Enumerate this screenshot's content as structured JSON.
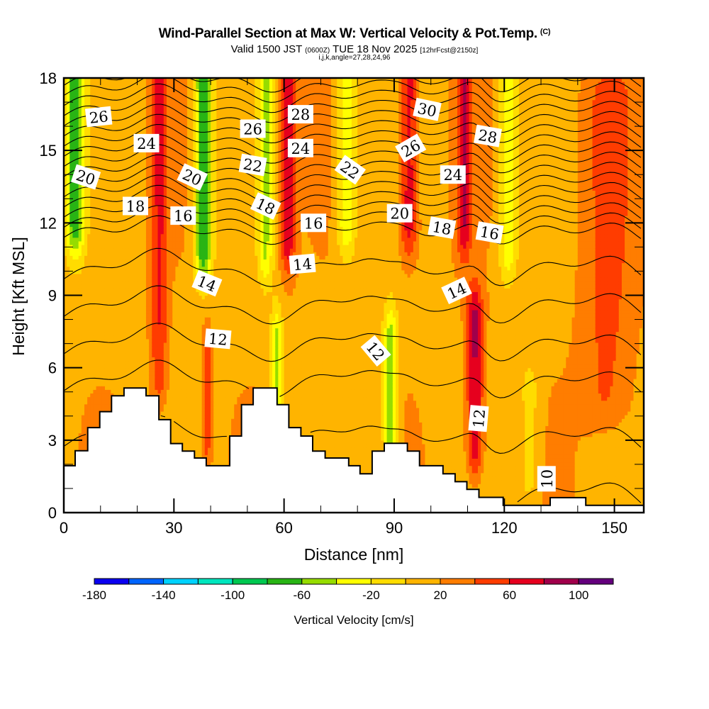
{
  "header": {
    "title": "Wind-Parallel Section at Max W: Vertical Velocity & Pot.Temp.",
    "copyright_mark": "(C)",
    "valid_prefix": "Valid 1500 JST",
    "valid_utc": "(0600Z)",
    "valid_date": "TUE 18 Nov 2025",
    "forecast_info": "[12hrFcst@2150z]",
    "grid_info": "i,j,k,angle=27,28,24,96"
  },
  "chart_data": {
    "type": "heatmap",
    "title": "Wind-Parallel Section at Max W: Vertical Velocity & Pot.Temp.",
    "xlabel": "Distance [nm]",
    "ylabel": "Height [Kft MSL]",
    "xlim": [
      0,
      158
    ],
    "ylim": [
      0,
      18
    ],
    "x_ticks": [
      0,
      30,
      60,
      90,
      120,
      150
    ],
    "x_minor_step": 10,
    "y_ticks": [
      0,
      3,
      6,
      9,
      12,
      15,
      18
    ],
    "y_minor_step": 1,
    "fill_variable": "Vertical Velocity [cm/s]",
    "contour_variable": "Potential Temperature",
    "colorbar": {
      "title": "Vertical Velocity [cm/s]",
      "placement": "bottom",
      "bounds": [
        -180,
        -160,
        -140,
        -120,
        -100,
        -80,
        -60,
        -40,
        -20,
        0,
        20,
        40,
        60,
        80,
        100,
        120
      ],
      "tick_labels": [
        "-180",
        "-140",
        "-100",
        "-60",
        "-20",
        "20",
        "60",
        "100"
      ],
      "tick_values": [
        -180,
        -140,
        -100,
        -60,
        -20,
        20,
        60,
        100
      ],
      "colors": [
        "#0a00f0",
        "#0064ff",
        "#00d2ff",
        "#00e6be",
        "#00c850",
        "#28b414",
        "#96dc00",
        "#ffff00",
        "#ffdc00",
        "#ffb400",
        "#ff7d00",
        "#ff3c00",
        "#e6001e",
        "#a0004b",
        "#64007d"
      ]
    },
    "background_w": 15,
    "w_columns": [
      {
        "x": 3,
        "x_width": 2.6,
        "h_bottom": 12,
        "h_top": 18,
        "w": -85
      },
      {
        "x": 26,
        "x_width": 2.2,
        "h_bottom": 6,
        "h_top": 18,
        "w": 45
      },
      {
        "x": 38,
        "x_width": 2.4,
        "h_bottom": 11,
        "h_top": 18,
        "w": -95
      },
      {
        "x": 55,
        "x_width": 2.0,
        "h_bottom": 11,
        "h_top": 18,
        "w": -55
      },
      {
        "x": 61,
        "x_width": 2.0,
        "h_bottom": 11.5,
        "h_top": 18,
        "w": 65
      },
      {
        "x": 58,
        "x_width": 1.6,
        "h_bottom": 5,
        "h_top": 7,
        "w": -65
      },
      {
        "x": 77,
        "x_width": 2.6,
        "h_bottom": 12,
        "h_top": 18,
        "w": -55
      },
      {
        "x": 89,
        "x_width": 2.0,
        "h_bottom": 3,
        "h_top": 7,
        "w": -70
      },
      {
        "x": 94,
        "x_width": 2.4,
        "h_bottom": 12,
        "h_top": 18,
        "w": 60
      },
      {
        "x": 109,
        "x_width": 2.0,
        "h_bottom": 12,
        "h_top": 18,
        "w": 60
      },
      {
        "x": 112,
        "x_width": 2.2,
        "h_bottom": 3,
        "h_top": 8,
        "w": 70
      },
      {
        "x": 121,
        "x_width": 2.4,
        "h_bottom": 11,
        "h_top": 18,
        "w": -50
      },
      {
        "x": 39,
        "x_width": 1.2,
        "h_bottom": 3.5,
        "h_top": 6,
        "w": 45
      },
      {
        "x": 148,
        "x_width": 7,
        "h_bottom": 5,
        "h_top": 17,
        "w": 30
      },
      {
        "x": 127,
        "x_width": 3,
        "h_bottom": 1.5,
        "h_top": 5,
        "w": -25
      }
    ],
    "terrain": {
      "x": [
        0,
        3.1,
        6.5,
        9.8,
        13.0,
        16.4,
        22.4,
        25.9,
        29.1,
        32.3,
        35.6,
        38.8,
        45.2,
        48.4,
        51.6,
        58.1,
        61.3,
        64.6,
        67.8,
        71.2,
        77.6,
        80.7,
        84.0,
        87.3,
        93.6,
        96.9,
        103.3,
        106.6,
        109.8,
        113.1,
        119.7,
        132.5,
        142.2,
        158
      ],
      "height": [
        1.94,
        2.56,
        3.52,
        4.18,
        4.84,
        5.16,
        4.84,
        3.85,
        2.86,
        2.55,
        2.26,
        1.94,
        3.17,
        4.47,
        5.16,
        4.47,
        3.52,
        3.17,
        2.55,
        2.26,
        1.94,
        1.61,
        2.55,
        2.87,
        2.55,
        1.94,
        1.61,
        1.28,
        0.96,
        0.63,
        0.3,
        0.62,
        0.3,
        0.3
      ]
    },
    "contour_levels": [
      10,
      11,
      12,
      13,
      14,
      15,
      16,
      17,
      18,
      19,
      20,
      21,
      22,
      23,
      24,
      25,
      26,
      27,
      28,
      29,
      30,
      31
    ],
    "contour_labels": [
      {
        "text": "26",
        "x": 9.5,
        "y": 16.4,
        "angle": -6
      },
      {
        "text": "24",
        "x": 22.5,
        "y": 15.3,
        "angle": 0
      },
      {
        "text": "20",
        "x": 6,
        "y": 13.9,
        "angle": 18
      },
      {
        "text": "18",
        "x": 19.5,
        "y": 12.7,
        "angle": 0
      },
      {
        "text": "20",
        "x": 35,
        "y": 13.9,
        "angle": 25
      },
      {
        "text": "16",
        "x": 32.5,
        "y": 12.3,
        "angle": 0
      },
      {
        "text": "26",
        "x": 51.5,
        "y": 15.9,
        "angle": 0
      },
      {
        "text": "22",
        "x": 51.5,
        "y": 14.4,
        "angle": 10
      },
      {
        "text": "18",
        "x": 55,
        "y": 12.7,
        "angle": 25
      },
      {
        "text": "28",
        "x": 64.5,
        "y": 16.5,
        "angle": 0
      },
      {
        "text": "24",
        "x": 64.5,
        "y": 15.1,
        "angle": 0
      },
      {
        "text": "16",
        "x": 68,
        "y": 12.0,
        "angle": 0
      },
      {
        "text": "14",
        "x": 39,
        "y": 9.5,
        "angle": 22
      },
      {
        "text": "14",
        "x": 65,
        "y": 10.3,
        "angle": -5
      },
      {
        "text": "12",
        "x": 42,
        "y": 7.2,
        "angle": 5
      },
      {
        "text": "22",
        "x": 78,
        "y": 14.2,
        "angle": 35
      },
      {
        "text": "30",
        "x": 99,
        "y": 16.7,
        "angle": 12
      },
      {
        "text": "26",
        "x": 94.5,
        "y": 15.1,
        "angle": -30
      },
      {
        "text": "28",
        "x": 115.5,
        "y": 15.6,
        "angle": 10
      },
      {
        "text": "24",
        "x": 106,
        "y": 14.0,
        "angle": 0
      },
      {
        "text": "20",
        "x": 91.5,
        "y": 12.4,
        "angle": 0
      },
      {
        "text": "18",
        "x": 103,
        "y": 11.8,
        "angle": 10
      },
      {
        "text": "16",
        "x": 116,
        "y": 11.6,
        "angle": 10
      },
      {
        "text": "14",
        "x": 107,
        "y": 9.2,
        "angle": -25
      },
      {
        "text": "12",
        "x": 85,
        "y": 6.7,
        "angle": 50
      },
      {
        "text": "12",
        "x": 113,
        "y": 3.9,
        "angle": -85
      },
      {
        "text": "10",
        "x": 131.5,
        "y": 1.4,
        "angle": -90
      }
    ]
  }
}
